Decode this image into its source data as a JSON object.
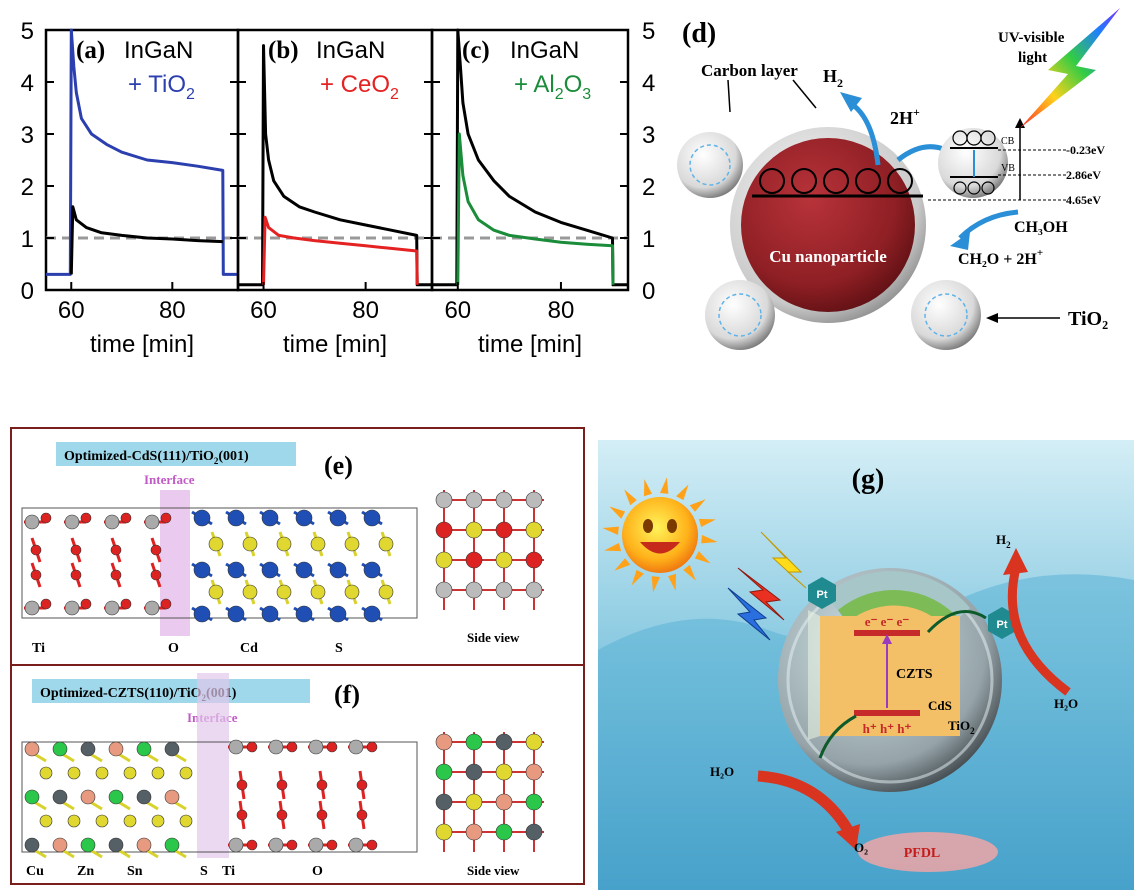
{
  "chart_data": [
    {
      "type": "line",
      "panel": "(a)",
      "annotation_line1": "InGaN",
      "annotation_line2": "+ TiO",
      "annotation_sub": "2",
      "xlabel": "time [min]",
      "xlim": [
        55,
        93
      ],
      "ylim": [
        0,
        5
      ],
      "x_ticks": [
        "60",
        "80"
      ],
      "y_ticks": [
        "0",
        "1",
        "2",
        "3",
        "4",
        "5"
      ],
      "series": [
        {
          "color": "#2b3fae",
          "points": [
            [
              55,
              0.3
            ],
            [
              59.8,
              0.3
            ],
            [
              60,
              5.0
            ],
            [
              60.5,
              4.3
            ],
            [
              61,
              3.8
            ],
            [
              62,
              3.3
            ],
            [
              64,
              3.0
            ],
            [
              67,
              2.8
            ],
            [
              70,
              2.65
            ],
            [
              75,
              2.5
            ],
            [
              80,
              2.45
            ],
            [
              85,
              2.38
            ],
            [
              90,
              2.3
            ],
            [
              90.1,
              0.3
            ],
            [
              93,
              0.3
            ]
          ]
        },
        {
          "color": "#000000",
          "points": [
            [
              60,
              0.3
            ],
            [
              60.3,
              1.6
            ],
            [
              61,
              1.35
            ],
            [
              63,
              1.2
            ],
            [
              66,
              1.1
            ],
            [
              70,
              1.05
            ],
            [
              75,
              1.0
            ],
            [
              80,
              0.98
            ],
            [
              85,
              0.95
            ],
            [
              90,
              0.93
            ]
          ]
        }
      ],
      "reference_line": 1.0,
      "colors": {
        "annotation2": "#2b3fae"
      }
    },
    {
      "type": "line",
      "panel": "(b)",
      "annotation_line1": "InGaN",
      "annotation_line2": "+ CeO",
      "annotation_sub": "2",
      "xlabel": "time [min]",
      "xlim": [
        55,
        93
      ],
      "ylim": [
        0,
        5
      ],
      "x_ticks": [
        "60",
        "80"
      ],
      "series": [
        {
          "color": "#000000",
          "points": [
            [
              55,
              0.1
            ],
            [
              59.8,
              0.1
            ],
            [
              60,
              4.7
            ],
            [
              60.4,
              3.0
            ],
            [
              61,
              2.5
            ],
            [
              62,
              2.1
            ],
            [
              64,
              1.8
            ],
            [
              67,
              1.6
            ],
            [
              70,
              1.5
            ],
            [
              75,
              1.35
            ],
            [
              80,
              1.25
            ],
            [
              85,
              1.15
            ],
            [
              90,
              1.05
            ],
            [
              90.1,
              0.1
            ],
            [
              93,
              0.1
            ]
          ]
        },
        {
          "color": "#e52222",
          "points": [
            [
              60,
              0.1
            ],
            [
              60.3,
              1.4
            ],
            [
              61,
              1.2
            ],
            [
              63,
              1.05
            ],
            [
              66,
              1.0
            ],
            [
              70,
              0.95
            ],
            [
              75,
              0.9
            ],
            [
              80,
              0.85
            ],
            [
              85,
              0.8
            ],
            [
              90,
              0.75
            ],
            [
              90.1,
              0.1
            ]
          ]
        }
      ],
      "reference_line": 1.0,
      "colors": {
        "annotation2": "#e52222"
      }
    },
    {
      "type": "line",
      "panel": "(c)",
      "annotation_line1": "InGaN",
      "annotation_line2": "+ Al",
      "annotation_sub": "2",
      "annotation_tail": "O",
      "annotation_sub2": "3",
      "xlabel": "time [min]",
      "xlim": [
        55,
        93
      ],
      "ylim": [
        0,
        5
      ],
      "x_ticks": [
        "60",
        "80"
      ],
      "y_ticks": [
        "0",
        "1",
        "2",
        "3",
        "4",
        "5"
      ],
      "series": [
        {
          "color": "#000000",
          "points": [
            [
              55,
              0.1
            ],
            [
              59.8,
              0.1
            ],
            [
              60,
              5.0
            ],
            [
              60.5,
              4.3
            ],
            [
              61,
              3.6
            ],
            [
              62,
              3.0
            ],
            [
              64,
              2.5
            ],
            [
              67,
              2.1
            ],
            [
              70,
              1.8
            ],
            [
              75,
              1.5
            ],
            [
              80,
              1.3
            ],
            [
              85,
              1.15
            ],
            [
              90,
              1.0
            ],
            [
              90.1,
              0.1
            ],
            [
              93,
              0.1
            ]
          ]
        },
        {
          "color": "#1a8c3a",
          "points": [
            [
              60,
              0.1
            ],
            [
              60.3,
              3.0
            ],
            [
              61,
              2.2
            ],
            [
              62,
              1.7
            ],
            [
              64,
              1.35
            ],
            [
              67,
              1.15
            ],
            [
              70,
              1.05
            ],
            [
              75,
              0.98
            ],
            [
              80,
              0.92
            ],
            [
              85,
              0.88
            ],
            [
              90,
              0.85
            ],
            [
              90.1,
              0.1
            ]
          ]
        }
      ],
      "reference_line": 1.0,
      "colors": {
        "annotation2": "#1a8c3a"
      }
    }
  ],
  "panel_d": {
    "label": "(d)",
    "carbon_layer": "Carbon layer",
    "uv_light_1": "UV-visible",
    "uv_light_2": "light",
    "h2": "H",
    "h2_sub": "2",
    "two_h_plus": "2H",
    "plus": "+",
    "cb": "CB",
    "vb": "VB",
    "e_m023": "-0.23eV",
    "e_286": "2.86eV",
    "e_465": "4.65eV",
    "ch3oh": "CH₃OH",
    "ch2o": "CH₂O + 2H",
    "cu_nanoparticle": "Cu nanoparticle",
    "tio2": "TiO₂",
    "electron": "e",
    "minus": "−",
    "hole": "h"
  },
  "panel_e": {
    "label": "(e)",
    "title": "Optimized-CdS(111)/TiO",
    "title_sub": "2",
    "title_tail": "(001)",
    "interface": "Interface",
    "labels": [
      "Ti",
      "O",
      "Cd",
      "S"
    ],
    "side_view": "Side view"
  },
  "panel_f": {
    "label": "(f)",
    "title": "Optimized-CZTS(110)/TiO",
    "title_sub": "2",
    "title_tail": "(001)",
    "interface": "Interface",
    "labels": [
      "Cu",
      "Zn",
      "Sn",
      "S",
      "Ti",
      "O"
    ],
    "side_view": "Side view"
  },
  "panel_g": {
    "label": "(g)",
    "h2": "H",
    "h2_sub": "2",
    "h2o_right": "H₂O",
    "h2o_left": "H₂O",
    "pt_1": "Pt",
    "pt_2": "Pt",
    "czts": "CZTS",
    "cds": "CdS",
    "tio2": "TiO",
    "tio2_sub": "2",
    "electrons": "e⁻  e⁻  e⁻",
    "holes": "h⁺  h⁺  h⁺",
    "o2": "O₂",
    "pfdl": "PFDL"
  }
}
